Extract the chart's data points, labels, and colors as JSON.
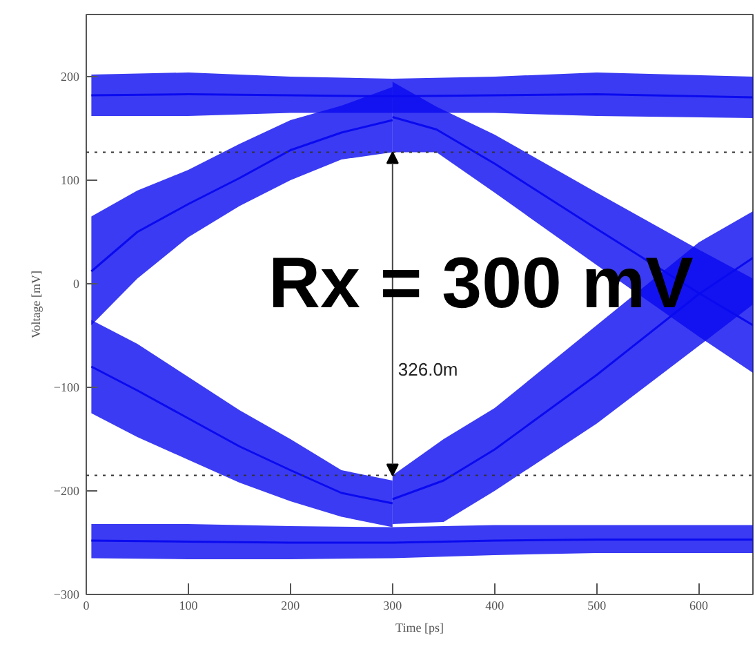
{
  "chart_data": {
    "type": "line",
    "xlabel": "Time [ps]",
    "ylabel": "Voltage [mV]",
    "xlim": [
      0,
      653
    ],
    "ylim": [
      -300,
      260
    ],
    "xticks": [
      0,
      100,
      200,
      300,
      400,
      500,
      600
    ],
    "yticks": [
      -300,
      -200,
      -100,
      0,
      100,
      200
    ],
    "grid": false,
    "marker": "none",
    "line_style": "solid",
    "series": [
      {
        "color": "#0a0af0",
        "x": [
          5,
          100,
          200,
          300,
          400,
          500,
          653
        ],
        "values": [
          182,
          183,
          182,
          181,
          182,
          183,
          180
        ],
        "lower": [
          162,
          162,
          165,
          165,
          165,
          162,
          160
        ],
        "upper": [
          202,
          204,
          200,
          198,
          200,
          204,
          200
        ]
      },
      {
        "color": "#0a0af0",
        "x": [
          5,
          50,
          100,
          150,
          200,
          250,
          300
        ],
        "values": [
          12,
          50,
          77,
          102,
          129,
          146,
          158
        ],
        "lower": [
          -40,
          5,
          45,
          75,
          100,
          120,
          127
        ],
        "upper": [
          65,
          90,
          110,
          135,
          158,
          172,
          190
        ]
      },
      {
        "color": "#0a0af0",
        "x": [
          300,
          343,
          400,
          500,
          600,
          653
        ],
        "values": [
          161,
          149,
          116,
          53,
          -9,
          -40
        ],
        "lower": [
          127,
          127,
          88,
          18,
          -51,
          -86
        ],
        "upper": [
          195,
          171,
          144,
          88,
          33,
          5
        ]
      },
      {
        "color": "#0a0af0",
        "x": [
          5,
          50,
          100,
          150,
          200,
          250,
          300
        ],
        "values": [
          -80,
          -103,
          -130,
          -157,
          -180,
          -202,
          -212
        ],
        "lower": [
          -125,
          -148,
          -170,
          -192,
          -210,
          -225,
          -235
        ],
        "upper": [
          -35,
          -58,
          -90,
          -122,
          -150,
          -180,
          -190
        ]
      },
      {
        "color": "#0a0af0",
        "x": [
          300,
          350,
          400,
          500,
          600,
          653
        ],
        "values": [
          -208,
          -190,
          -160,
          -88,
          -10,
          25
        ],
        "lower": [
          -232,
          -230,
          -200,
          -135,
          -60,
          -20
        ],
        "upper": [
          -185,
          -150,
          -120,
          -40,
          40,
          70
        ]
      },
      {
        "color": "#0a0af0",
        "x": [
          5,
          100,
          200,
          300,
          400,
          500,
          653
        ],
        "values": [
          -248,
          -249,
          -250,
          -250,
          -248,
          -247,
          -247
        ],
        "lower": [
          -265,
          -266,
          -266,
          -265,
          -262,
          -260,
          -260
        ],
        "upper": [
          -232,
          -232,
          -234,
          -235,
          -233,
          -233,
          -233
        ]
      }
    ],
    "ref_lines": [
      {
        "axis": "y",
        "value": 127,
        "line_style": "dotted",
        "color": "#333333"
      },
      {
        "axis": "y",
        "value": -185,
        "line_style": "dotted",
        "color": "#333333"
      }
    ],
    "annotations": [
      "326.0m",
      "Rx = 300 mV"
    ]
  }
}
